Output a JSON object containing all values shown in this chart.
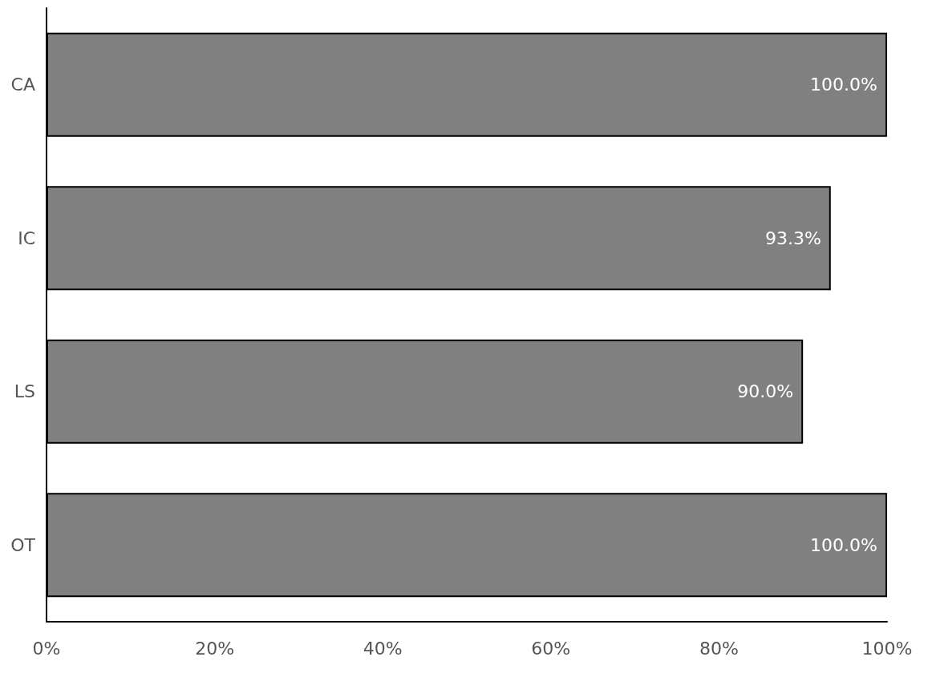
{
  "chart_data": {
    "type": "bar",
    "orientation": "horizontal",
    "categories": [
      "CA",
      "IC",
      "LS",
      "OT"
    ],
    "values": [
      100,
      93.3,
      90,
      100
    ],
    "value_labels": [
      "100.0%",
      "93.3%",
      "90.0%",
      "100.0%"
    ],
    "color": "#808080",
    "xlim": [
      0,
      100
    ],
    "xticks": [
      {
        "value": 0,
        "label": "0%"
      },
      {
        "value": 20,
        "label": "20%"
      },
      {
        "value": 40,
        "label": "40%"
      },
      {
        "value": 60,
        "label": "60%"
      },
      {
        "value": 80,
        "label": "80%"
      },
      {
        "value": 100,
        "label": "100%"
      }
    ],
    "grid": false
  }
}
